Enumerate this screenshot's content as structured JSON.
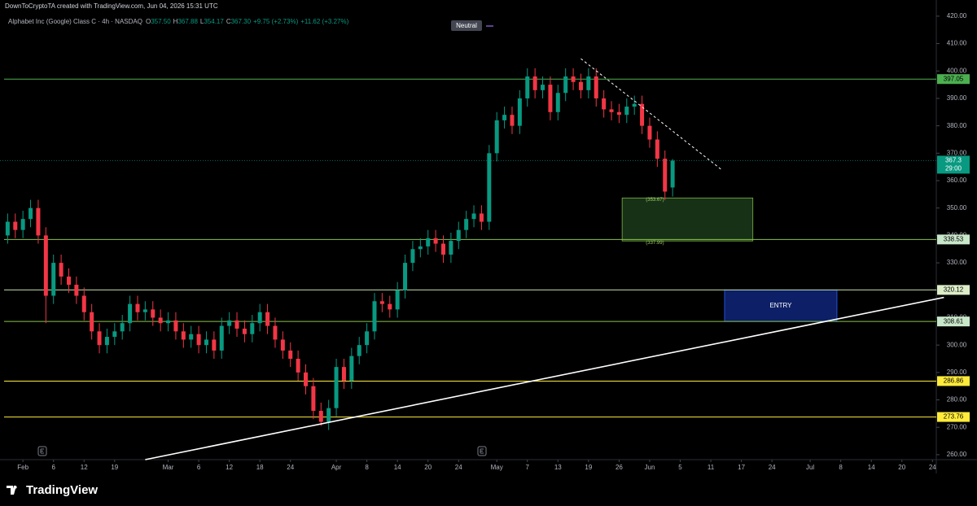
{
  "header": {
    "credit": "DownToCryptoTA created with TradingView.com, Jun 04, 2026 15:31 UTC",
    "symbol": "Alphabet Inc (Google) Class C · 4h · NASDAQ",
    "ohlc": [
      {
        "label": "O",
        "value": "357.50"
      },
      {
        "label": "H",
        "value": "367.88"
      },
      {
        "label": "L",
        "value": "354.17"
      },
      {
        "label": "C",
        "value": "367.30"
      }
    ],
    "change": "+9.75 (+2.73%)",
    "change_total": "+11.62 (+3.27%)",
    "indicator": "Neutral",
    "brand": "TradingView"
  },
  "chart_data": {
    "type": "candlestick",
    "up_color": "#089981",
    "down_color": "#f23645",
    "xlim": [
      -3,
      119.5
    ],
    "xticks": [
      {
        "value": 0,
        "label": "Feb"
      },
      {
        "value": 4,
        "label": "6"
      },
      {
        "value": 8,
        "label": "12"
      },
      {
        "value": 12,
        "label": "19"
      },
      {
        "value": 19,
        "label": "Mar"
      },
      {
        "value": 23,
        "label": "6"
      },
      {
        "value": 27,
        "label": "12"
      },
      {
        "value": 31,
        "label": "18"
      },
      {
        "value": 35,
        "label": "24"
      },
      {
        "value": 41,
        "label": "Apr"
      },
      {
        "value": 45,
        "label": "8"
      },
      {
        "value": 49,
        "label": "14"
      },
      {
        "value": 53,
        "label": "20"
      },
      {
        "value": 57,
        "label": "24"
      },
      {
        "value": 62,
        "label": "May"
      },
      {
        "value": 66,
        "label": "7"
      },
      {
        "value": 70,
        "label": "13"
      },
      {
        "value": 74,
        "label": "19"
      },
      {
        "value": 78,
        "label": "26"
      },
      {
        "value": 82,
        "label": "Jun"
      },
      {
        "value": 86,
        "label": "5"
      },
      {
        "value": 90,
        "label": "11"
      },
      {
        "value": 94,
        "label": "17"
      },
      {
        "value": 98,
        "label": "24"
      },
      {
        "value": 103,
        "label": "Jul"
      },
      {
        "value": 107,
        "label": "8"
      },
      {
        "value": 111,
        "label": "14"
      },
      {
        "value": 115,
        "label": "20"
      },
      {
        "value": 119,
        "label": "24"
      }
    ],
    "ylim": [
      258.2,
      425.9
    ],
    "yticks": [
      {
        "value": 260,
        "label": "260.00"
      },
      {
        "value": 270,
        "label": "270.00"
      },
      {
        "value": 280,
        "label": "280.00"
      },
      {
        "value": 290,
        "label": "290.00"
      },
      {
        "value": 300,
        "label": "300.00"
      },
      {
        "value": 310,
        "label": "310.00"
      },
      {
        "value": 320,
        "label": "320.00"
      },
      {
        "value": 330,
        "label": "330.00"
      },
      {
        "value": 340,
        "label": "340.00"
      },
      {
        "value": 350,
        "label": "350.00"
      },
      {
        "value": 360,
        "label": "360.00"
      },
      {
        "value": 370,
        "label": "370.00"
      },
      {
        "value": 380,
        "label": "380.00"
      },
      {
        "value": 390,
        "label": "390.00"
      },
      {
        "value": 400,
        "label": "400.00"
      },
      {
        "value": 410,
        "label": "410.00"
      },
      {
        "value": 420,
        "label": "420.00"
      }
    ],
    "x": [
      -2,
      -1,
      0,
      1,
      2,
      3,
      4,
      5,
      6,
      7,
      8,
      9,
      10,
      11,
      12,
      13,
      14,
      15,
      16,
      17,
      18,
      19,
      20,
      21,
      22,
      23,
      24,
      25,
      26,
      27,
      28,
      29,
      30,
      31,
      32,
      33,
      34,
      35,
      36,
      37,
      38,
      39,
      40,
      41,
      42,
      43,
      44,
      45,
      46,
      47,
      48,
      49,
      50,
      51,
      52,
      53,
      54,
      55,
      56,
      57,
      58,
      59,
      60,
      61,
      62,
      63,
      64,
      65,
      66,
      67,
      68,
      69,
      70,
      71,
      72,
      73,
      74,
      75,
      76,
      77,
      78,
      79,
      80,
      81,
      82,
      83,
      84,
      85
    ],
    "open": [
      340,
      345,
      342,
      346,
      350,
      340,
      318,
      330,
      325,
      322,
      318,
      312,
      305,
      300,
      303,
      305,
      308,
      315,
      312,
      313,
      310,
      308,
      309,
      305,
      302,
      304,
      300,
      302,
      298,
      307,
      309,
      306,
      304,
      308,
      312,
      307,
      302,
      298,
      295,
      290,
      285,
      276,
      272,
      277,
      292,
      287,
      296,
      300,
      305,
      316,
      315,
      313,
      320,
      330,
      335,
      336,
      339,
      337,
      333,
      338,
      342,
      346,
      348,
      345,
      370,
      382,
      384,
      380,
      390,
      398,
      393,
      395,
      385,
      392,
      398,
      396,
      393,
      398,
      390,
      386,
      385,
      384,
      387,
      388,
      380,
      375,
      368,
      357.5
    ],
    "high": [
      348,
      348,
      349,
      353,
      353,
      343,
      333,
      333,
      328,
      325,
      321,
      315,
      308,
      306,
      308,
      311,
      318,
      318,
      316,
      316,
      313,
      312,
      312,
      308,
      307,
      307,
      305,
      305,
      310,
      312,
      312,
      309,
      311,
      315,
      315,
      310,
      305,
      301,
      298,
      293,
      288,
      279,
      280,
      295,
      295,
      299,
      303,
      308,
      319,
      319,
      318,
      323,
      333,
      338,
      339,
      342,
      342,
      340,
      341,
      345,
      349,
      351,
      351,
      373,
      385,
      387,
      387,
      393,
      401,
      401,
      398,
      398,
      395,
      401,
      401,
      399,
      401,
      401,
      393,
      389,
      388,
      390,
      391,
      391,
      383,
      378,
      371,
      367.88
    ],
    "low": [
      337,
      339,
      339,
      343,
      337,
      308,
      315,
      322,
      319,
      315,
      309,
      302,
      297,
      297,
      300,
      302,
      305,
      309,
      309,
      307,
      305,
      305,
      302,
      299,
      299,
      297,
      297,
      295,
      295,
      304,
      303,
      301,
      301,
      305,
      304,
      299,
      295,
      292,
      287,
      282,
      273,
      270.5,
      269,
      274,
      284,
      284,
      293,
      297,
      302,
      312,
      310,
      310,
      317,
      327,
      332,
      333,
      334,
      330,
      330,
      335,
      339,
      343,
      342,
      342,
      367,
      379,
      377,
      377,
      387,
      390,
      390,
      382,
      382,
      389,
      393,
      390,
      390,
      387,
      383,
      382,
      381,
      381,
      384,
      377,
      372,
      365,
      353,
      354.17
    ],
    "close": [
      345,
      342,
      346,
      350,
      340,
      318,
      330,
      325,
      322,
      318,
      312,
      305,
      300,
      303,
      305,
      308,
      315,
      312,
      313,
      310,
      308,
      309,
      305,
      302,
      304,
      300,
      302,
      298,
      307,
      309,
      306,
      304,
      308,
      312,
      307,
      302,
      298,
      295,
      290,
      285,
      276,
      272,
      277,
      292,
      287,
      296,
      300,
      305,
      316,
      315,
      313,
      320,
      330,
      335,
      336,
      339,
      337,
      333,
      338,
      342,
      346,
      348,
      345,
      370,
      382,
      384,
      380,
      390,
      398,
      393,
      395,
      385,
      392,
      398,
      396,
      393,
      398,
      390,
      386,
      385,
      384,
      387,
      388,
      380,
      375,
      368,
      356,
      367.3
    ],
    "hlines": [
      {
        "value": 397.05,
        "color": "#4caf50",
        "label_bg": "#4caf50"
      },
      {
        "value": 338.53,
        "color": "#8bc34a",
        "label_bg": "#c8e6c9"
      },
      {
        "value": 320.12,
        "color": "#c5e1a5",
        "label_bg": "#dcedc8"
      },
      {
        "value": 308.61,
        "color": "#8bc34a",
        "label_bg": "#c8e6c9"
      },
      {
        "value": 286.86,
        "color": "#ffeb3b",
        "label_bg": "#ffeb3b"
      },
      {
        "value": 273.76,
        "color": "#ffeb3b",
        "label_bg": "#ffeb3b"
      }
    ],
    "last_price": 367.3,
    "countdown": "29:00",
    "zone": {
      "top": 353.67,
      "bottom": 337.99,
      "x": [
        78.4,
        95.5
      ],
      "top_label": "(353.67)",
      "bottom_label": "(337.99)"
    },
    "entry": {
      "top": 320.12,
      "bottom": 308.61,
      "x": [
        91.8,
        106.5
      ],
      "label": "ENTRY"
    },
    "trendlines": [
      {
        "x": [
          16,
          120.5
        ],
        "y": [
          258.2,
          317.4
        ],
        "color": "#ffffff",
        "dash": false
      },
      {
        "x": [
          73,
          91.4
        ],
        "y": [
          404.5,
          364
        ],
        "color": "#ffffff",
        "dash": true
      }
    ]
  }
}
